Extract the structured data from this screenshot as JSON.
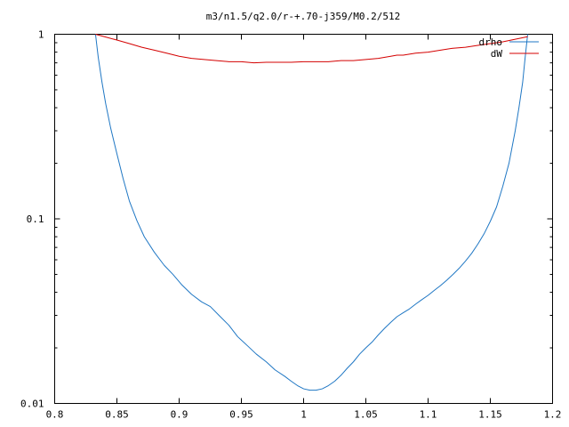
{
  "chart_data": {
    "type": "line",
    "title": "m3/n1.5/q2.0/r-+.70-j359/M0.2/512",
    "xlabel": "",
    "ylabel": "",
    "xlim": [
      0.8,
      1.2
    ],
    "ylim": [
      0.01,
      1
    ],
    "yscale": "log",
    "grid": false,
    "legend_position": "top-right",
    "x_ticks": [
      {
        "value": 0.8,
        "label": "0.8"
      },
      {
        "value": 0.85,
        "label": "0.85"
      },
      {
        "value": 0.9,
        "label": "0.9"
      },
      {
        "value": 0.95,
        "label": "0.95"
      },
      {
        "value": 1.0,
        "label": "1"
      },
      {
        "value": 1.05,
        "label": "1.05"
      },
      {
        "value": 1.1,
        "label": "1.1"
      },
      {
        "value": 1.15,
        "label": "1.15"
      },
      {
        "value": 1.2,
        "label": "1.2"
      }
    ],
    "y_ticks": [
      {
        "value": 0.01,
        "label": "0.01"
      },
      {
        "value": 0.1,
        "label": "0.1"
      },
      {
        "value": 1,
        "label": "1"
      }
    ],
    "series": [
      {
        "name": "drho",
        "color": "#1f77c4",
        "x": [
          0.8328,
          0.835,
          0.838,
          0.841,
          0.845,
          0.85,
          0.855,
          0.86,
          0.866,
          0.872,
          0.88,
          0.888,
          0.895,
          0.902,
          0.91,
          0.918,
          0.925,
          0.932,
          0.94,
          0.947,
          0.955,
          0.962,
          0.97,
          0.977,
          0.985,
          0.99,
          0.995,
          1.0,
          1.005,
          1.01,
          1.015,
          1.02,
          1.025,
          1.03,
          1.035,
          1.04,
          1.045,
          1.05,
          1.055,
          1.06,
          1.065,
          1.07,
          1.075,
          1.08,
          1.085,
          1.09,
          1.095,
          1.1,
          1.105,
          1.11,
          1.115,
          1.12,
          1.125,
          1.13,
          1.135,
          1.14,
          1.145,
          1.15,
          1.155,
          1.16,
          1.165,
          1.17,
          1.173,
          1.176,
          1.178,
          1.18
        ],
        "values": [
          1.0,
          0.75,
          0.55,
          0.42,
          0.31,
          0.225,
          0.165,
          0.125,
          0.098,
          0.08,
          0.066,
          0.056,
          0.05,
          0.044,
          0.039,
          0.0355,
          0.0335,
          0.03,
          0.0265,
          0.023,
          0.0205,
          0.0185,
          0.0168,
          0.0152,
          0.014,
          0.0132,
          0.0125,
          0.012,
          0.0118,
          0.0118,
          0.012,
          0.0125,
          0.0132,
          0.0142,
          0.0155,
          0.0168,
          0.0185,
          0.02,
          0.0215,
          0.0235,
          0.0255,
          0.0275,
          0.0295,
          0.031,
          0.0325,
          0.0345,
          0.0365,
          0.0385,
          0.041,
          0.0435,
          0.0465,
          0.05,
          0.054,
          0.059,
          0.065,
          0.073,
          0.083,
          0.097,
          0.116,
          0.15,
          0.2,
          0.3,
          0.4,
          0.55,
          0.75,
          1.0
        ]
      },
      {
        "name": "dW",
        "color": "#d40000",
        "x": [
          0.8328,
          0.84,
          0.85,
          0.86,
          0.87,
          0.88,
          0.89,
          0.9,
          0.91,
          0.92,
          0.93,
          0.94,
          0.95,
          0.96,
          0.97,
          0.98,
          0.99,
          1.0,
          1.01,
          1.02,
          1.03,
          1.04,
          1.05,
          1.06,
          1.07,
          1.075,
          1.08,
          1.085,
          1.09,
          1.1,
          1.11,
          1.12,
          1.13,
          1.14,
          1.15,
          1.16,
          1.17,
          1.18
        ],
        "values": [
          1.0,
          0.97,
          0.93,
          0.89,
          0.85,
          0.82,
          0.79,
          0.76,
          0.74,
          0.73,
          0.72,
          0.71,
          0.71,
          0.7,
          0.705,
          0.705,
          0.705,
          0.71,
          0.71,
          0.71,
          0.72,
          0.72,
          0.73,
          0.74,
          0.76,
          0.77,
          0.77,
          0.78,
          0.79,
          0.8,
          0.82,
          0.84,
          0.85,
          0.87,
          0.89,
          0.91,
          0.94,
          0.97
        ]
      }
    ]
  }
}
